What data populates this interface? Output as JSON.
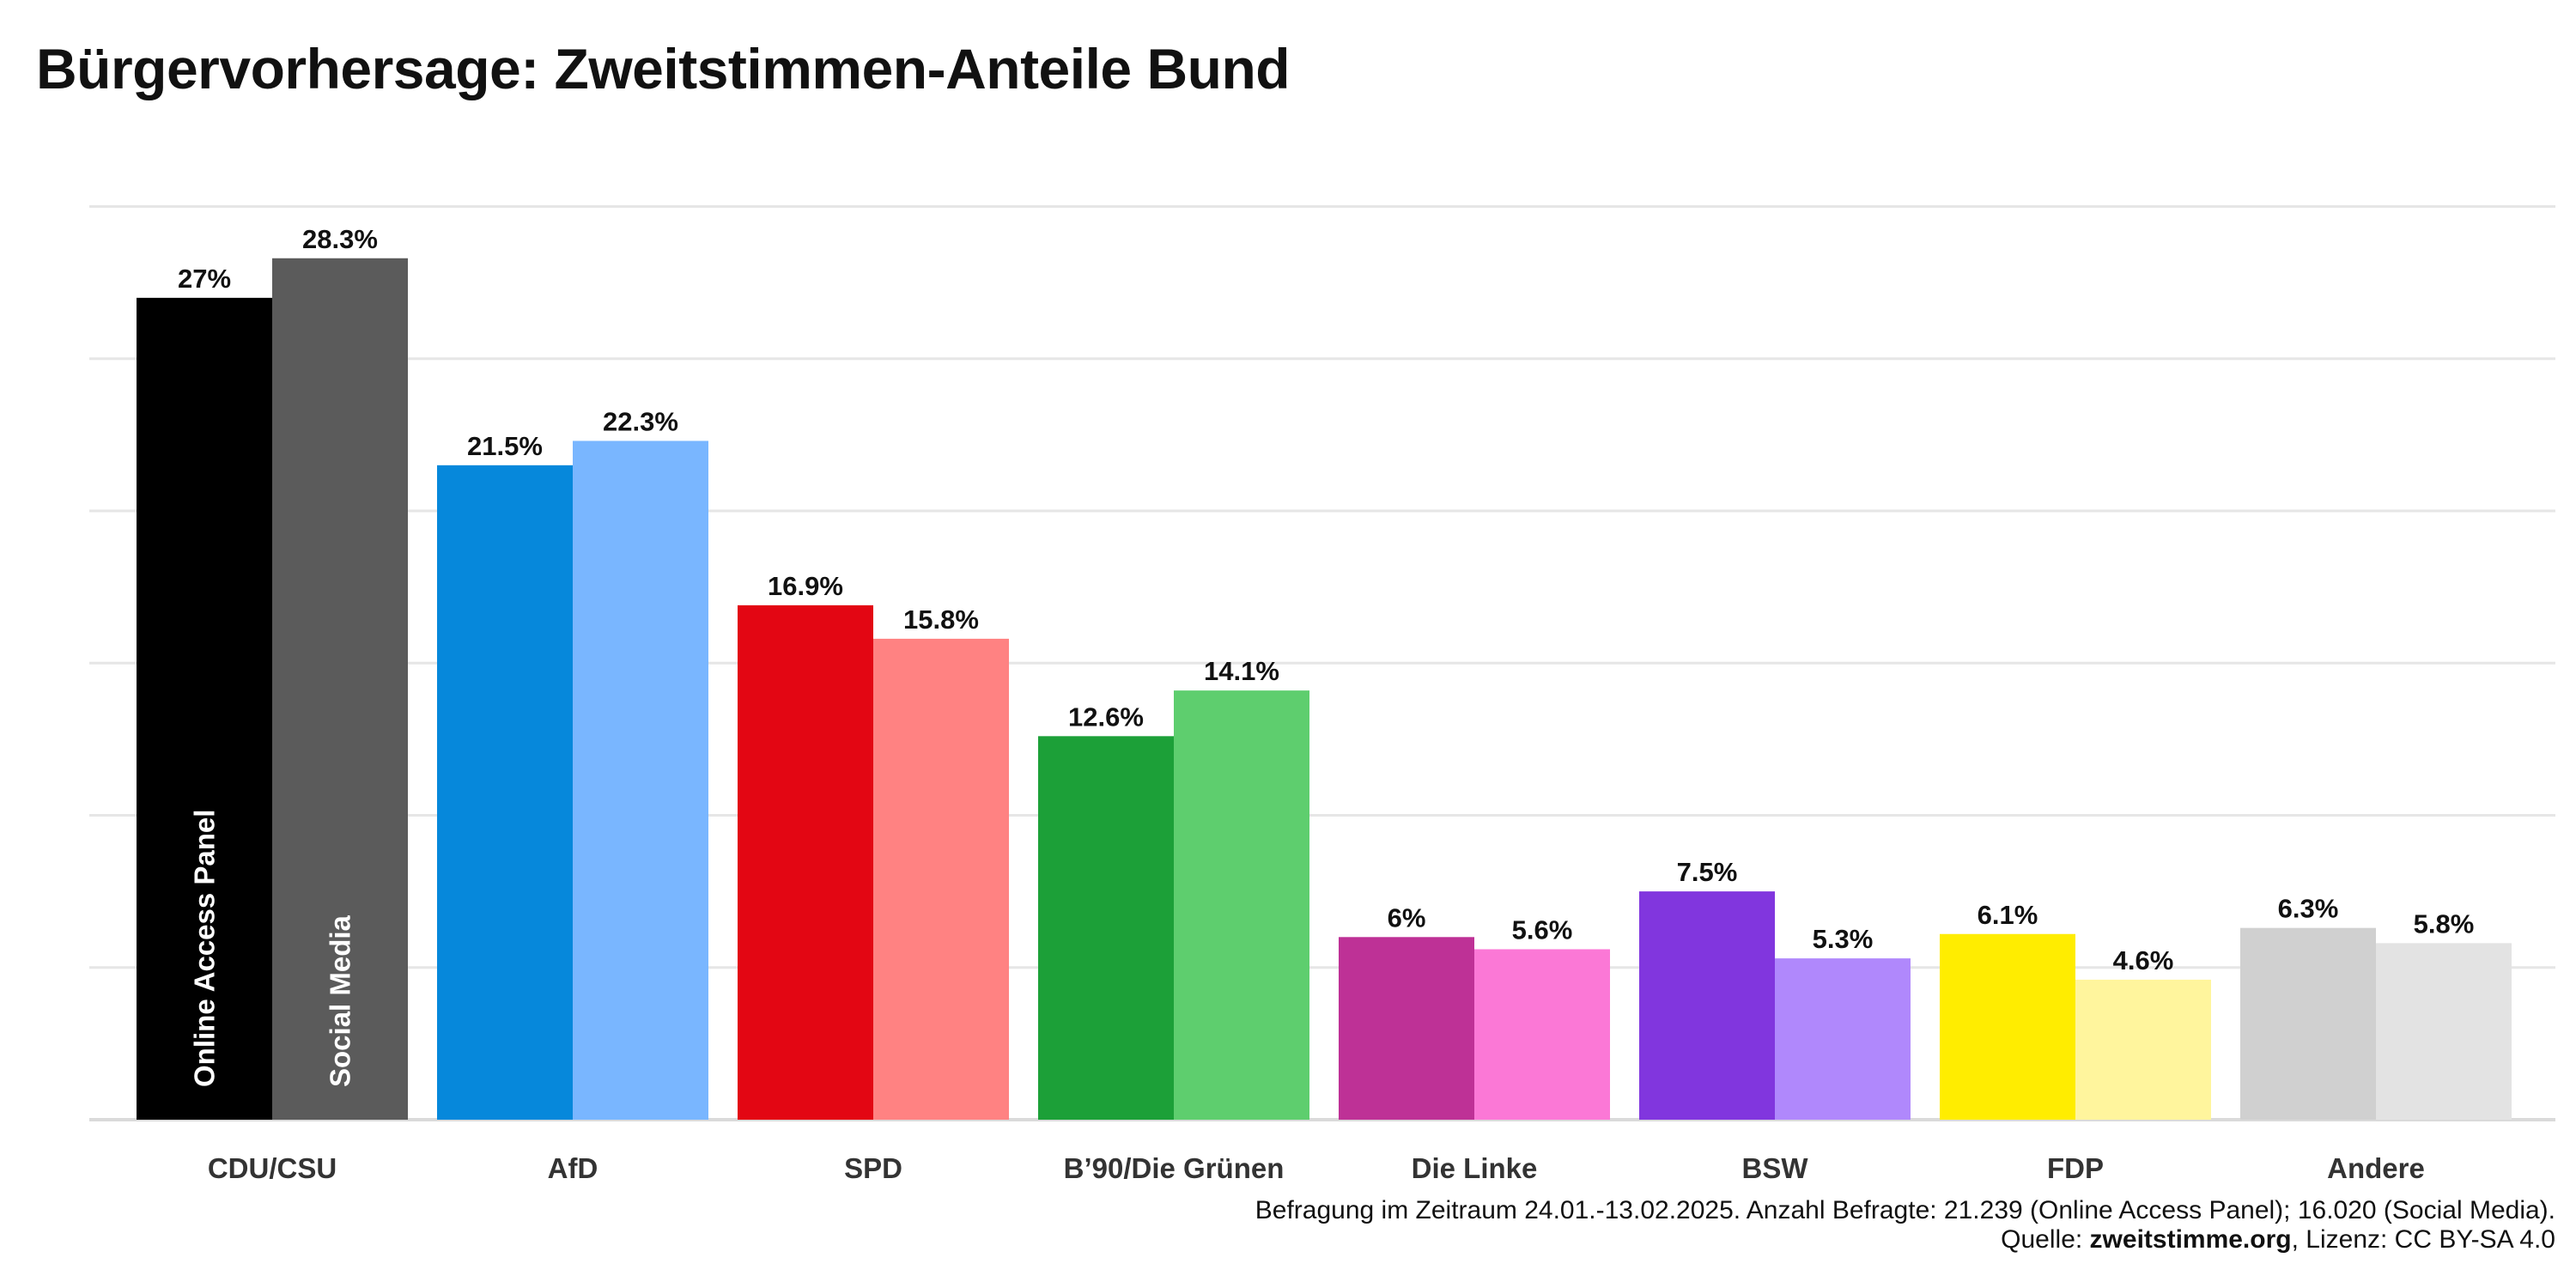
{
  "chart_data": {
    "type": "bar",
    "title": "Bürgervorhersage: Zweitstimmen-Anteile Bund",
    "categories": [
      "CDU/CSU",
      "AfD",
      "SPD",
      "B’90/Die Grünen",
      "Die Linke",
      "BSW",
      "FDP",
      "Andere"
    ],
    "series": [
      {
        "name": "Online Access Panel",
        "values": [
          27,
          21.5,
          16.9,
          12.6,
          6,
          7.5,
          6.1,
          6.3
        ],
        "labels": [
          "27%",
          "21.5%",
          "16.9%",
          "12.6%",
          "6%",
          "7.5%",
          "6.1%",
          "6.3%"
        ],
        "colors": [
          "#000000",
          "#0688DB",
          "#E30613",
          "#1CA038",
          "#BE3196",
          "#8136DE",
          "#FFED00",
          "#D0D0D0"
        ]
      },
      {
        "name": "Social Media",
        "values": [
          28.3,
          22.3,
          15.8,
          14.1,
          5.6,
          5.3,
          4.6,
          5.8
        ],
        "labels": [
          "28.3%",
          "22.3%",
          "15.8%",
          "14.1%",
          "5.6%",
          "5.3%",
          "4.6%",
          "5.8%"
        ],
        "colors": [
          "#5B5B5B",
          "#79B6FF",
          "#FF8282",
          "#5ECE6E",
          "#FB78D6",
          "#B088FC",
          "#FFF59D",
          "#E3E3E3"
        ]
      }
    ],
    "ylim": [
      0,
      30
    ],
    "grid": true,
    "series_label_color": "#FFFFFF"
  },
  "footer": {
    "line1": "Befragung im Zeitraum 24.01.-13.02.2025. Anzahl Befragte: 21.239 (Online Access Panel); 16.020 (Social Media).",
    "source_prefix": "Quelle: ",
    "source_name": "zweitstimme.org",
    "source_suffix": ", Lizenz: CC BY-SA 4.0"
  }
}
